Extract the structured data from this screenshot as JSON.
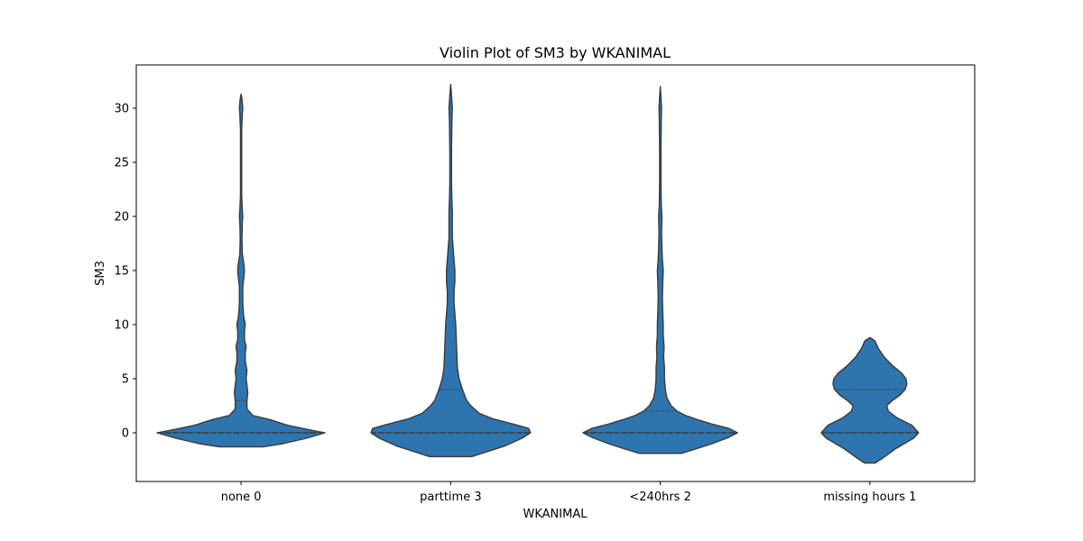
{
  "chart_data": {
    "type": "violin",
    "title": "Violin Plot of SM3 by WKANIMAL",
    "xlabel": "WKANIMAL",
    "ylabel": "SM3",
    "categories": [
      "none 0",
      "parttime 3",
      "<240hrs 2",
      "missing hours 1"
    ],
    "ylim": [
      -4.5,
      34
    ],
    "yticks": [
      0,
      5,
      10,
      15,
      20,
      25,
      30
    ],
    "grid": false,
    "color": "#2e75b0",
    "edge_color": "#3a3a3a",
    "violins": [
      {
        "category": "none 0",
        "min": -1.3,
        "max": 31.3,
        "quartiles": [
          0,
          0,
          3
        ],
        "profile": [
          [
            -1.3,
            0.26
          ],
          [
            -1,
            0.5
          ],
          [
            -0.5,
            0.78
          ],
          [
            0,
            1.0
          ],
          [
            0.3,
            0.8
          ],
          [
            0.7,
            0.55
          ],
          [
            1.2,
            0.35
          ],
          [
            1.6,
            0.14
          ],
          [
            2.2,
            0.07
          ],
          [
            3,
            0.07
          ],
          [
            3.7,
            0.08
          ],
          [
            4.4,
            0.07
          ],
          [
            5,
            0.06
          ],
          [
            5.8,
            0.07
          ],
          [
            6.6,
            0.05
          ],
          [
            7.4,
            0.05
          ],
          [
            8,
            0.06
          ],
          [
            8.6,
            0.04
          ],
          [
            9.4,
            0.04
          ],
          [
            10,
            0.05
          ],
          [
            10.8,
            0.03
          ],
          [
            12,
            0.02
          ],
          [
            13.5,
            0.02
          ],
          [
            14.5,
            0.035
          ],
          [
            15,
            0.04
          ],
          [
            15.5,
            0.035
          ],
          [
            16.5,
            0.015
          ],
          [
            18,
            0.01
          ],
          [
            19.5,
            0.015
          ],
          [
            20,
            0.02
          ],
          [
            20.5,
            0.015
          ],
          [
            22,
            0.007
          ],
          [
            25,
            0.007
          ],
          [
            28,
            0.007
          ],
          [
            29.5,
            0.015
          ],
          [
            30,
            0.02
          ],
          [
            30.5,
            0.015
          ],
          [
            31,
            0.008
          ],
          [
            31.3,
            0
          ]
        ]
      },
      {
        "category": "parttime 3",
        "min": -2.2,
        "max": 32.2,
        "quartiles": [
          0,
          0,
          4
        ],
        "profile": [
          [
            -2.2,
            0.25
          ],
          [
            -1.7,
            0.45
          ],
          [
            -1.2,
            0.65
          ],
          [
            -0.5,
            0.85
          ],
          [
            0,
            0.95
          ],
          [
            0.4,
            0.93
          ],
          [
            0.8,
            0.75
          ],
          [
            1.3,
            0.5
          ],
          [
            1.8,
            0.34
          ],
          [
            2.5,
            0.24
          ],
          [
            3,
            0.19
          ],
          [
            4,
            0.14
          ],
          [
            5,
            0.1
          ],
          [
            6,
            0.08
          ],
          [
            7,
            0.075
          ],
          [
            8,
            0.07
          ],
          [
            9,
            0.065
          ],
          [
            10,
            0.06
          ],
          [
            11,
            0.05
          ],
          [
            12,
            0.04
          ],
          [
            13,
            0.04
          ],
          [
            14,
            0.05
          ],
          [
            15,
            0.05
          ],
          [
            16,
            0.04
          ],
          [
            17,
            0.03
          ],
          [
            18,
            0.02
          ],
          [
            19.5,
            0.02
          ],
          [
            20.5,
            0.02
          ],
          [
            21.5,
            0.015
          ],
          [
            23,
            0.01
          ],
          [
            26,
            0.01
          ],
          [
            29,
            0.015
          ],
          [
            30,
            0.02
          ],
          [
            31,
            0.012
          ],
          [
            32.2,
            0
          ]
        ]
      },
      {
        "category": "<240hrs 2",
        "min": -1.9,
        "max": 32,
        "quartiles": [
          0,
          0,
          2
        ],
        "profile": [
          [
            -1.9,
            0.25
          ],
          [
            -1.5,
            0.42
          ],
          [
            -1,
            0.62
          ],
          [
            -0.4,
            0.82
          ],
          [
            0,
            0.92
          ],
          [
            0.4,
            0.82
          ],
          [
            0.8,
            0.62
          ],
          [
            1.2,
            0.45
          ],
          [
            1.6,
            0.3
          ],
          [
            2,
            0.2
          ],
          [
            2.5,
            0.13
          ],
          [
            3.2,
            0.08
          ],
          [
            4,
            0.06
          ],
          [
            5,
            0.05
          ],
          [
            6,
            0.05
          ],
          [
            7,
            0.04
          ],
          [
            8,
            0.045
          ],
          [
            9,
            0.035
          ],
          [
            10,
            0.035
          ],
          [
            11,
            0.03
          ],
          [
            12.5,
            0.025
          ],
          [
            14,
            0.03
          ],
          [
            15,
            0.035
          ],
          [
            16,
            0.025
          ],
          [
            17,
            0.02
          ],
          [
            18.5,
            0.015
          ],
          [
            20,
            0.02
          ],
          [
            21,
            0.012
          ],
          [
            23,
            0.008
          ],
          [
            26,
            0.008
          ],
          [
            29,
            0.012
          ],
          [
            30,
            0.015
          ],
          [
            31,
            0.008
          ],
          [
            32,
            0
          ]
        ]
      },
      {
        "category": "missing hours 1",
        "min": -2.8,
        "max": 8.8,
        "quartiles": [
          0,
          0,
          4
        ],
        "profile": [
          [
            -2.8,
            0.06
          ],
          [
            -2.3,
            0.16
          ],
          [
            -1.5,
            0.3
          ],
          [
            -0.5,
            0.52
          ],
          [
            0,
            0.58
          ],
          [
            0.7,
            0.5
          ],
          [
            1.4,
            0.32
          ],
          [
            2,
            0.22
          ],
          [
            2.5,
            0.2
          ],
          [
            3,
            0.27
          ],
          [
            3.5,
            0.36
          ],
          [
            4,
            0.42
          ],
          [
            4.5,
            0.44
          ],
          [
            5,
            0.43
          ],
          [
            5.5,
            0.38
          ],
          [
            6.2,
            0.27
          ],
          [
            7,
            0.17
          ],
          [
            7.8,
            0.1
          ],
          [
            8.5,
            0.06
          ],
          [
            8.8,
            0
          ]
        ]
      }
    ]
  }
}
